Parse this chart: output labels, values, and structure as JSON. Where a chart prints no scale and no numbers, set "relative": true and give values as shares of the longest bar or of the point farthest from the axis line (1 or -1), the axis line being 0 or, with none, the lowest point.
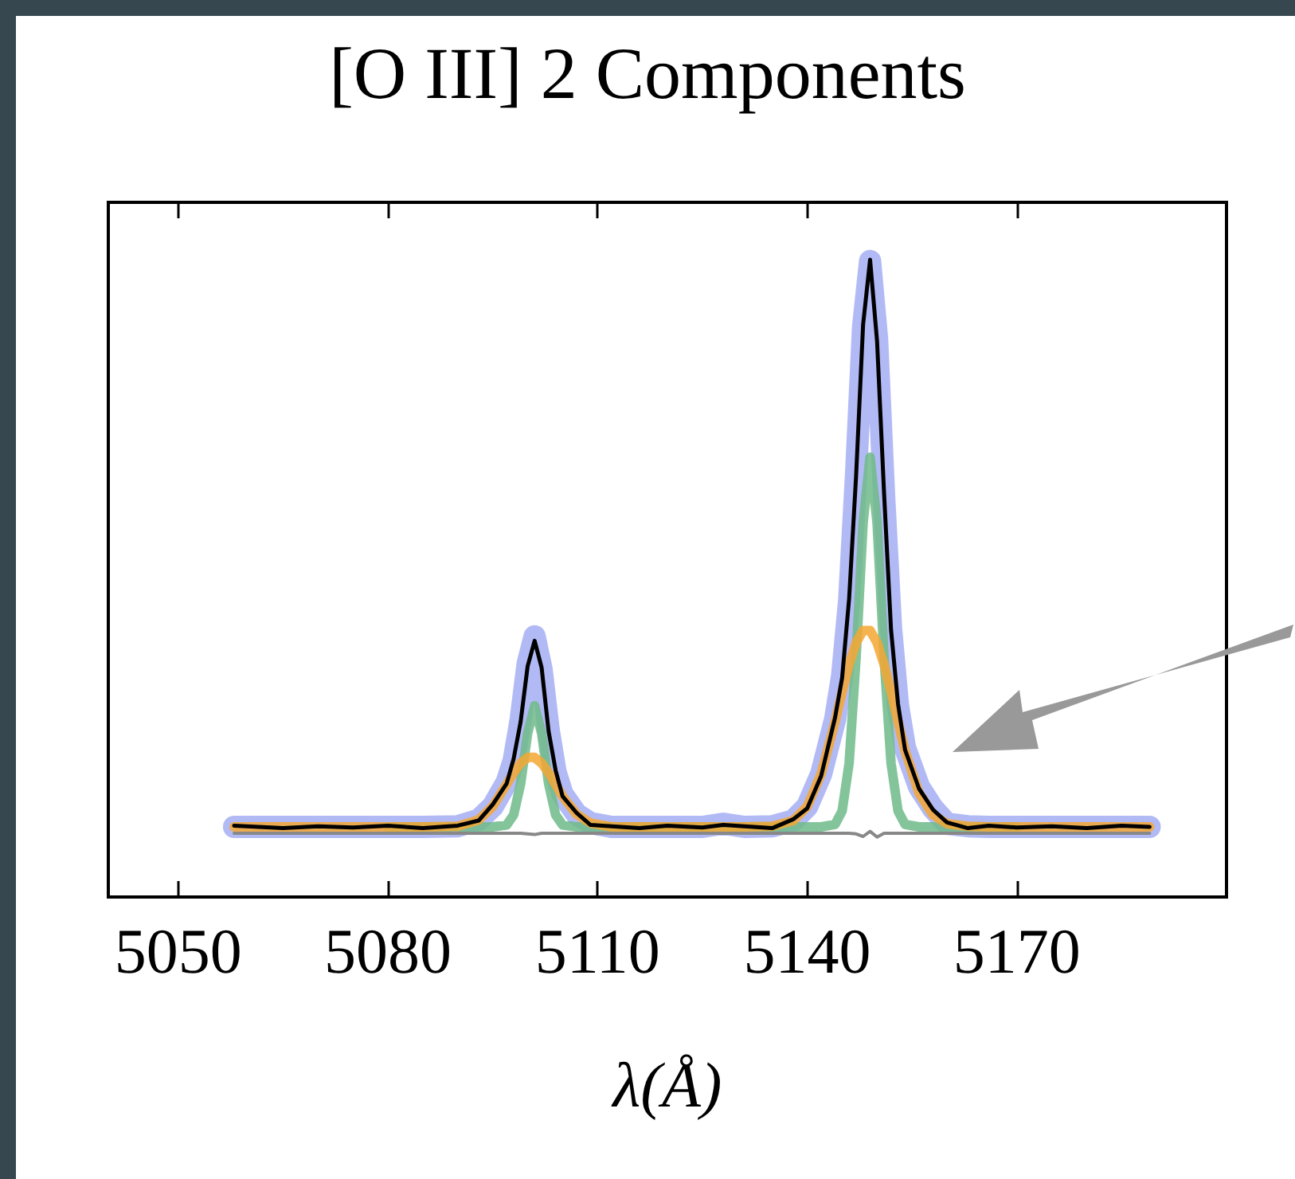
{
  "chart_data": {
    "type": "line",
    "title": "[O III] 2 Components",
    "xlabel": "λ(Å)",
    "relative": true,
    "x": [
      5058,
      5065,
      5070,
      5075,
      5080,
      5085,
      5090,
      5093,
      5095,
      5097,
      5098,
      5099,
      5100,
      5101,
      5102,
      5103,
      5104,
      5105,
      5107,
      5109,
      5112,
      5116,
      5120,
      5125,
      5128,
      5131,
      5135,
      5138,
      5140,
      5142,
      5144,
      5145,
      5146,
      5147,
      5148,
      5149,
      5150,
      5151,
      5152,
      5153,
      5154,
      5156,
      5158,
      5160,
      5163,
      5166,
      5170,
      5175,
      5180,
      5185,
      5189
    ],
    "xlim": [
      5040,
      5200
    ],
    "xticks": [
      5050,
      5080,
      5110,
      5140,
      5170
    ],
    "series": [
      {
        "color": "#aab2f4",
        "values": [
          0.11,
          0.11,
          0.11,
          0.11,
          0.11,
          0.11,
          0.111,
          0.121,
          0.142,
          0.18,
          0.214,
          0.278,
          0.366,
          0.409,
          0.357,
          0.263,
          0.196,
          0.161,
          0.13,
          0.116,
          0.11,
          0.11,
          0.11,
          0.11,
          0.115,
          0.11,
          0.111,
          0.12,
          0.142,
          0.193,
          0.279,
          0.347,
          0.465,
          0.665,
          0.895,
          0.998,
          0.876,
          0.631,
          0.422,
          0.3,
          0.234,
          0.173,
          0.139,
          0.115,
          0.111,
          0.11,
          0.11,
          0.11,
          0.11,
          0.11,
          0.11
        ]
      },
      {
        "color": "#6fba88",
        "values": [
          null,
          null,
          null,
          null,
          0.11,
          0.11,
          0.11,
          0.11,
          0.11,
          0.113,
          0.129,
          0.178,
          0.257,
          0.3,
          0.257,
          0.178,
          0.129,
          0.113,
          0.11,
          0.11,
          0.11,
          0.11,
          0.11,
          0.11,
          0.11,
          0.11,
          0.11,
          0.11,
          0.11,
          0.11,
          0.114,
          0.135,
          0.21,
          0.376,
          0.587,
          0.69,
          0.587,
          0.376,
          0.21,
          0.135,
          0.114,
          0.11,
          0.11,
          0.11,
          0.11,
          0.11,
          0.11,
          null,
          null,
          null,
          null
        ]
      },
      {
        "color": "#f5a733",
        "values": [
          0.11,
          0.11,
          0.11,
          0.11,
          0.11,
          0.11,
          0.111,
          0.121,
          0.142,
          0.177,
          0.195,
          0.21,
          0.219,
          0.219,
          0.21,
          0.195,
          0.177,
          0.158,
          0.13,
          0.116,
          0.11,
          0.11,
          0.11,
          0.11,
          0.11,
          0.11,
          0.111,
          0.12,
          0.142,
          0.193,
          0.275,
          0.322,
          0.365,
          0.399,
          0.418,
          0.418,
          0.399,
          0.365,
          0.322,
          0.275,
          0.23,
          0.163,
          0.129,
          0.115,
          0.111,
          0.11,
          0.11,
          0.11,
          0.11,
          0.11,
          0.11
        ]
      },
      {
        "color": "#888888",
        "values": [
          0.1,
          0.1,
          0.1,
          0.1,
          0.1,
          0.1,
          0.1,
          0.1,
          0.1,
          0.1,
          0.1,
          0.1,
          0.099,
          0.098,
          0.1,
          0.1,
          0.1,
          0.1,
          0.1,
          0.1,
          0.1,
          0.1,
          0.1,
          0.1,
          0.1,
          0.1,
          0.1,
          0.1,
          0.1,
          0.1,
          0.1,
          0.1,
          0.1,
          0.099,
          0.095,
          0.103,
          0.094,
          0.1,
          0.1,
          0.1,
          0.1,
          0.1,
          0.1,
          0.1,
          0.1,
          0.1,
          0.1,
          0.1,
          0.1,
          0.1,
          0.1
        ]
      },
      {
        "color": "#000000",
        "values": [
          0.112,
          0.108,
          0.111,
          0.109,
          0.112,
          0.108,
          0.112,
          0.12,
          0.145,
          0.178,
          0.217,
          0.275,
          0.362,
          0.402,
          0.36,
          0.26,
          0.199,
          0.158,
          0.132,
          0.113,
          0.111,
          0.108,
          0.112,
          0.109,
          0.113,
          0.111,
          0.108,
          0.122,
          0.139,
          0.19,
          0.282,
          0.344,
          0.468,
          0.661,
          0.898,
          1.0,
          0.872,
          0.634,
          0.419,
          0.303,
          0.231,
          0.17,
          0.137,
          0.117,
          0.108,
          0.112,
          0.109,
          0.111,
          0.108,
          0.112,
          0.11
        ]
      }
    ]
  }
}
